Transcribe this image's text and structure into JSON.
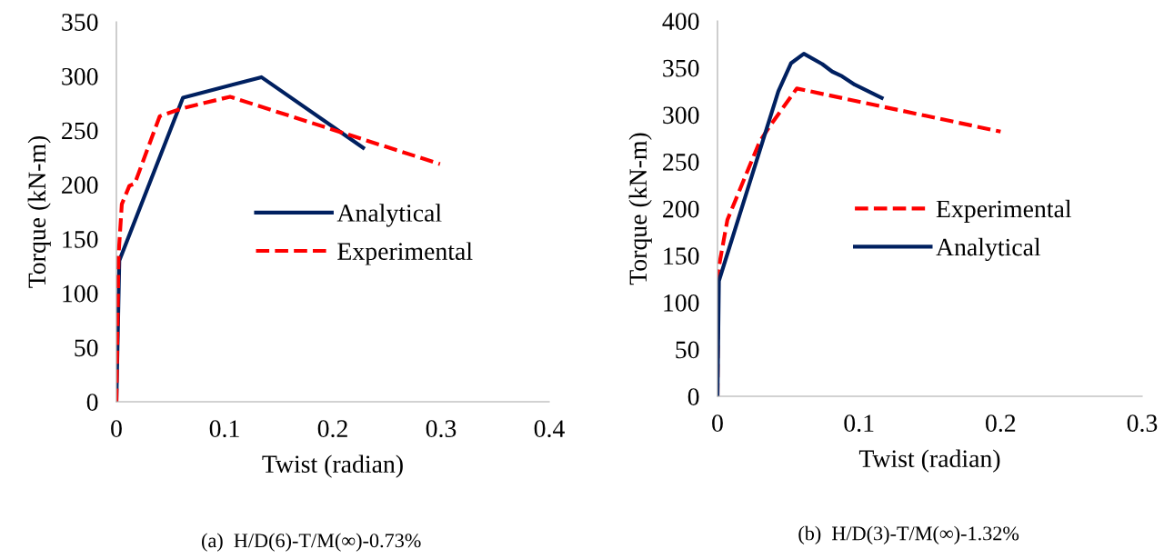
{
  "chart_data": [
    {
      "type": "line",
      "xlabel": "Twist (radian)",
      "ylabel": "Torque (kN-m)",
      "xlim": [
        0,
        0.4
      ],
      "xticks": [
        0,
        0.1,
        0.2,
        0.3,
        0.4
      ],
      "ylim": [
        0,
        350
      ],
      "yticks": [
        0,
        50,
        100,
        150,
        200,
        250,
        300,
        350
      ],
      "grid": false,
      "legend": "right",
      "annotations": [
        "(a)  H/D(6)-T/M(∞)-0.73%"
      ],
      "series": [
        {
          "name": "Analytical",
          "color": "#002060",
          "line_style": "solid",
          "x": [
            0,
            0.0027,
            0.0615,
            0.134,
            0.228
          ],
          "values": [
            0,
            130,
            280,
            299,
            234
          ]
        },
        {
          "name": "Experimental",
          "color": "#ff0000",
          "line_style": "dashed",
          "x": [
            0,
            0.002,
            0.005,
            0.012,
            0.017,
            0.04,
            0.06,
            0.105,
            0.299
          ],
          "values": [
            0,
            135,
            182,
            199,
            201,
            263,
            270,
            281,
            219
          ]
        }
      ]
    },
    {
      "type": "line",
      "xlabel": "Twist (radian)",
      "ylabel": "Torque (kN-m)",
      "xlim": [
        0,
        0.3
      ],
      "xticks": [
        0,
        0.1,
        0.2,
        0.3
      ],
      "ylim": [
        0,
        400
      ],
      "yticks": [
        0,
        50,
        100,
        150,
        200,
        250,
        300,
        350,
        400
      ],
      "grid": false,
      "legend": "right",
      "annotations": [
        "(b)  H/D(3)-T/M(∞)-1.32%"
      ],
      "series": [
        {
          "name": "Experimental",
          "color": "#ff0000",
          "line_style": "dashed",
          "x": [
            0,
            0.0005,
            0.007,
            0.022,
            0.03,
            0.038,
            0.056,
            0.2
          ],
          "values": [
            0,
            134,
            188,
            243,
            272,
            290,
            328,
            282
          ]
        },
        {
          "name": "Analytical",
          "color": "#002060",
          "line_style": "solid",
          "x": [
            0,
            0.001,
            0.043,
            0.052,
            0.061,
            0.074,
            0.081,
            0.088,
            0.097,
            0.116
          ],
          "values": [
            0,
            123,
            325,
            355,
            365,
            354,
            346,
            341,
            332,
            318
          ]
        }
      ]
    }
  ]
}
